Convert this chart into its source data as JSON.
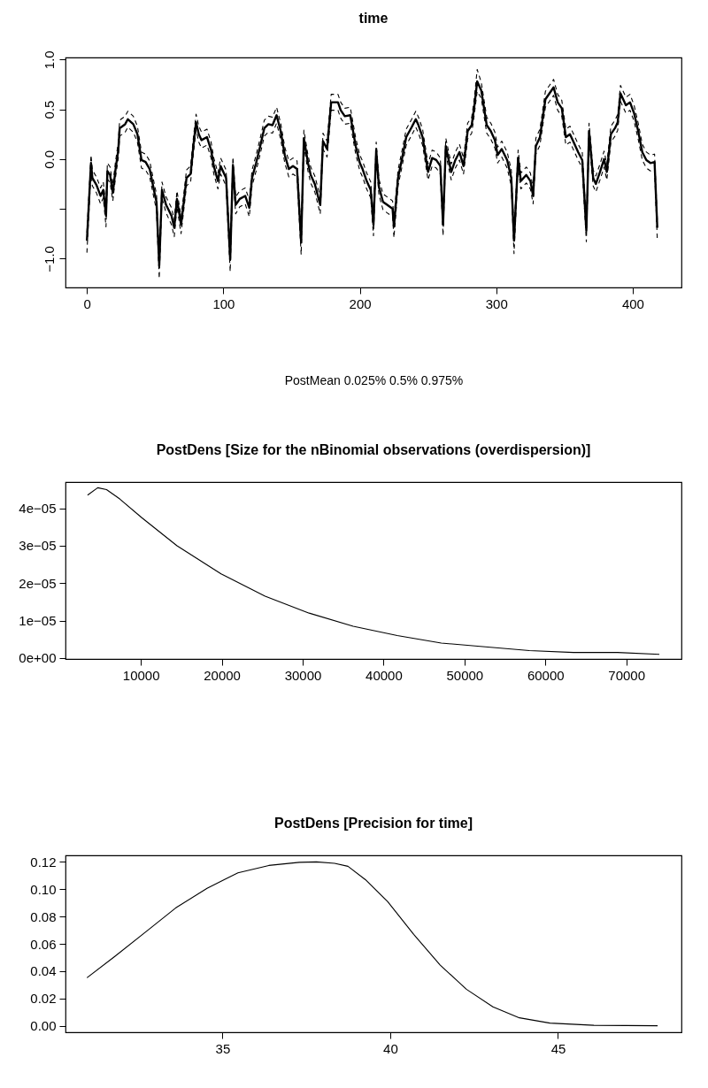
{
  "chart_data": [
    {
      "type": "line",
      "title": "time",
      "xlabel": "PostMean  0.025% 0.5% 0.975%",
      "grid": false,
      "xlim": [
        -15.7,
        435.7
      ],
      "ylim": [
        -1.29,
        1.02
      ],
      "xticks": [
        0,
        100,
        200,
        300,
        400
      ],
      "yticks": [
        {
          "value": -1.0,
          "label": "−1.0"
        },
        {
          "value": -0.5,
          "label": null
        },
        {
          "value": 0.0,
          "label": "0.0"
        },
        {
          "value": 0.5,
          "label": "0.5"
        },
        {
          "value": 1.0,
          "label": "1.0"
        }
      ],
      "x": [
        0,
        3,
        4,
        7,
        10,
        12,
        14,
        15,
        17,
        19,
        21,
        23,
        24,
        28,
        30,
        34,
        37,
        40,
        43,
        46,
        50,
        51,
        53,
        55,
        58,
        62,
        64,
        66,
        69,
        71,
        73,
        76,
        78,
        80,
        82,
        84,
        88,
        91,
        93,
        96,
        98,
        102,
        105,
        107,
        109,
        112,
        116,
        119,
        121,
        124,
        127,
        130,
        133,
        136,
        139,
        142,
        145,
        148,
        151,
        154,
        157,
        159,
        162,
        164,
        167,
        171,
        173,
        176,
        179,
        184,
        186,
        189,
        193,
        197,
        200,
        202,
        205,
        208,
        210,
        212,
        214,
        217,
        220,
        224,
        225,
        228,
        231,
        234,
        238,
        241,
        243,
        246,
        250,
        253,
        256,
        259,
        261,
        263,
        267,
        270,
        273,
        276,
        279,
        282,
        284,
        286,
        289,
        293,
        296,
        299,
        301,
        304,
        308,
        311,
        313,
        316,
        318,
        322,
        325,
        327,
        329,
        332,
        336,
        339,
        342,
        345,
        348,
        351,
        354,
        357,
        360,
        363,
        366,
        368,
        371,
        373,
        376,
        379,
        381,
        384,
        387,
        389,
        391,
        395,
        398,
        401,
        404,
        407,
        410,
        413,
        416,
        418
      ],
      "series": [
        {
          "color": "#000000",
          "line_style": "solid",
          "values": [
            -0.82,
            -0.04,
            -0.19,
            -0.26,
            -0.37,
            -0.31,
            -0.57,
            -0.12,
            -0.16,
            -0.34,
            -0.1,
            0.09,
            0.31,
            0.35,
            0.4,
            0.35,
            0.25,
            -0.01,
            -0.03,
            -0.1,
            -0.37,
            -0.43,
            -1.07,
            -0.31,
            -0.46,
            -0.57,
            -0.69,
            -0.4,
            -0.66,
            -0.43,
            -0.19,
            -0.15,
            0.13,
            0.37,
            0.25,
            0.19,
            0.22,
            0.09,
            -0.07,
            -0.22,
            -0.07,
            -0.19,
            -1.01,
            -0.06,
            -0.46,
            -0.4,
            -0.37,
            -0.49,
            -0.19,
            -0.04,
            0.13,
            0.31,
            0.35,
            0.34,
            0.44,
            0.28,
            0.04,
            -0.1,
            -0.07,
            -0.1,
            -0.84,
            0.21,
            -0.04,
            -0.16,
            -0.25,
            -0.46,
            0.18,
            0.1,
            0.57,
            0.57,
            0.49,
            0.43,
            0.44,
            0.13,
            -0.04,
            -0.1,
            -0.22,
            -0.31,
            -0.66,
            0.09,
            -0.28,
            -0.43,
            -0.46,
            -0.5,
            -0.68,
            -0.19,
            0.01,
            0.22,
            0.32,
            0.4,
            0.34,
            0.22,
            -0.13,
            0.01,
            -0.01,
            -0.07,
            -0.66,
            0.13,
            -0.13,
            -0.01,
            0.07,
            -0.07,
            0.28,
            0.34,
            0.54,
            0.78,
            0.69,
            0.34,
            0.28,
            0.19,
            0.04,
            0.1,
            -0.01,
            -0.19,
            -0.82,
            0.01,
            -0.22,
            -0.16,
            -0.22,
            -0.37,
            0.13,
            0.22,
            0.6,
            0.66,
            0.72,
            0.57,
            0.51,
            0.22,
            0.25,
            0.16,
            0.07,
            -0.01,
            -0.72,
            0.28,
            -0.19,
            -0.25,
            -0.13,
            0.0,
            -0.13,
            0.25,
            0.31,
            0.37,
            0.66,
            0.54,
            0.57,
            0.46,
            0.28,
            0.07,
            -0.01,
            -0.04,
            -0.03,
            -0.69
          ]
        },
        {
          "color": "#000000",
          "line_style": "dashed",
          "values": [
            -0.94,
            -0.12,
            -0.27,
            -0.34,
            -0.45,
            -0.39,
            -0.68,
            -0.2,
            -0.24,
            -0.42,
            -0.18,
            0.01,
            0.23,
            0.27,
            0.32,
            0.27,
            0.17,
            -0.09,
            -0.11,
            -0.18,
            -0.45,
            -0.52,
            -1.2,
            -0.39,
            -0.54,
            -0.66,
            -0.78,
            -0.48,
            -0.75,
            -0.51,
            -0.27,
            -0.23,
            0.05,
            0.29,
            0.17,
            0.11,
            0.14,
            0.01,
            -0.15,
            -0.3,
            -0.15,
            -0.27,
            -1.13,
            -0.14,
            -0.55,
            -0.48,
            -0.45,
            -0.58,
            -0.27,
            -0.12,
            0.05,
            0.23,
            0.27,
            0.26,
            0.36,
            0.2,
            -0.04,
            -0.18,
            -0.15,
            -0.18,
            -0.96,
            0.13,
            -0.12,
            -0.24,
            -0.33,
            -0.55,
            0.1,
            0.02,
            0.49,
            0.49,
            0.41,
            0.35,
            0.36,
            0.05,
            -0.12,
            -0.18,
            -0.3,
            -0.39,
            -0.77,
            0.01,
            -0.36,
            -0.51,
            -0.54,
            -0.58,
            -0.79,
            -0.27,
            -0.07,
            0.14,
            0.24,
            0.32,
            0.26,
            0.14,
            -0.21,
            -0.07,
            -0.09,
            -0.15,
            -0.77,
            0.05,
            -0.21,
            -0.09,
            -0.01,
            -0.15,
            0.2,
            0.26,
            0.46,
            0.68,
            0.61,
            0.26,
            0.2,
            0.11,
            -0.04,
            0.02,
            -0.09,
            -0.27,
            -0.95,
            -0.07,
            -0.3,
            -0.24,
            -0.3,
            -0.45,
            0.05,
            0.14,
            0.52,
            0.58,
            0.64,
            0.49,
            0.43,
            0.14,
            0.17,
            0.08,
            -0.01,
            -0.09,
            -0.83,
            0.2,
            -0.27,
            -0.33,
            -0.21,
            -0.08,
            -0.21,
            0.17,
            0.23,
            0.29,
            0.58,
            0.46,
            0.49,
            0.38,
            0.2,
            -0.01,
            -0.09,
            -0.12,
            -0.11,
            -0.81
          ]
        },
        {
          "color": "#000000",
          "line_style": "dashed",
          "values": [
            -0.74,
            0.04,
            -0.11,
            -0.18,
            -0.29,
            -0.23,
            -0.49,
            -0.04,
            -0.08,
            -0.26,
            -0.02,
            0.17,
            0.39,
            0.43,
            0.48,
            0.43,
            0.33,
            0.07,
            0.05,
            -0.02,
            -0.29,
            -0.35,
            -0.98,
            -0.23,
            -0.38,
            -0.49,
            -0.61,
            -0.32,
            -0.58,
            -0.35,
            -0.11,
            -0.07,
            0.21,
            0.45,
            0.33,
            0.27,
            0.3,
            0.17,
            0.01,
            -0.14,
            0.01,
            -0.11,
            -0.93,
            0.02,
            -0.38,
            -0.32,
            -0.29,
            -0.41,
            -0.11,
            0.04,
            0.21,
            0.39,
            0.43,
            0.42,
            0.52,
            0.36,
            0.12,
            -0.02,
            0.01,
            -0.02,
            -0.76,
            0.29,
            0.04,
            -0.08,
            -0.17,
            -0.38,
            0.26,
            0.18,
            0.65,
            0.65,
            0.57,
            0.51,
            0.52,
            0.21,
            0.04,
            -0.02,
            -0.14,
            -0.23,
            -0.58,
            0.17,
            -0.2,
            -0.35,
            -0.38,
            -0.42,
            -0.6,
            -0.11,
            0.09,
            0.3,
            0.4,
            0.48,
            0.42,
            0.3,
            -0.05,
            0.09,
            0.07,
            0.01,
            -0.58,
            0.21,
            -0.05,
            0.07,
            0.15,
            0.01,
            0.36,
            0.42,
            0.62,
            0.9,
            0.77,
            0.42,
            0.36,
            0.27,
            0.12,
            0.18,
            0.07,
            -0.11,
            -0.74,
            0.09,
            -0.14,
            -0.08,
            -0.14,
            -0.29,
            0.21,
            0.3,
            0.68,
            0.74,
            0.8,
            0.65,
            0.59,
            0.3,
            0.33,
            0.24,
            0.15,
            0.07,
            -0.64,
            0.36,
            -0.11,
            -0.17,
            -0.05,
            0.08,
            -0.05,
            0.33,
            0.39,
            0.45,
            0.74,
            0.62,
            0.65,
            0.54,
            0.36,
            0.15,
            0.07,
            0.04,
            0.05,
            -0.61
          ]
        }
      ]
    },
    {
      "type": "line",
      "title": "PostDens [Size for the nBinomial observations (overdispersion)]",
      "grid": false,
      "xlim": [
        680,
        76820
      ],
      "ylim": [
        -2.5e-07,
        4.7e-05
      ],
      "xticks": [
        10000,
        20000,
        30000,
        40000,
        50000,
        60000,
        70000
      ],
      "yticks": [
        {
          "value": 0,
          "label": "0e+00"
        },
        {
          "value": 1e-05,
          "label": "1e−05"
        },
        {
          "value": 2e-05,
          "label": "2e−05"
        },
        {
          "value": 3e-05,
          "label": "3e−05"
        },
        {
          "value": 4e-05,
          "label": "4e−05"
        }
      ],
      "x": [
        3411,
        4664,
        5753,
        7386,
        10109,
        14465,
        19910,
        25355,
        30800,
        36245,
        41690,
        47135,
        52580,
        58025,
        63470,
        68915,
        74090
      ],
      "series": [
        {
          "color": "#000000",
          "line_style": "solid",
          "values": [
            4.35e-05,
            4.55e-05,
            4.5e-05,
            4.25e-05,
            3.75e-05,
            3e-05,
            2.25e-05,
            1.65e-05,
            1.2e-05,
            8.5e-06,
            6e-06,
            4e-06,
            3e-06,
            2e-06,
            1.5e-06,
            1.5e-06,
            1e-06
          ]
        }
      ]
    },
    {
      "type": "line",
      "title": "PostDens [Precision for time]",
      "grid": false,
      "xlim": [
        30.32,
        48.68
      ],
      "ylim": [
        -0.0048,
        0.1248
      ],
      "xticks": [
        35,
        40,
        45
      ],
      "yticks": [
        {
          "value": 0,
          "label": "0.00"
        },
        {
          "value": 0.02,
          "label": "0.02"
        },
        {
          "value": 0.04,
          "label": "0.04"
        },
        {
          "value": 0.06,
          "label": "0.06"
        },
        {
          "value": 0.08,
          "label": "0.08"
        },
        {
          "value": 0.1,
          "label": "0.10"
        },
        {
          "value": 0.12,
          "label": "0.12"
        }
      ],
      "x": [
        30.96,
        31.79,
        32.7,
        33.6,
        34.54,
        35.46,
        36.38,
        37.29,
        37.8,
        38.34,
        38.74,
        39.26,
        39.92,
        40.7,
        41.49,
        42.27,
        43.06,
        43.85,
        44.76,
        46.07,
        47.97
      ],
      "series": [
        {
          "color": "#000000",
          "line_style": "solid",
          "values": [
            0.0351,
            0.0508,
            0.0685,
            0.0862,
            0.1007,
            0.112,
            0.1174,
            0.1197,
            0.12,
            0.119,
            0.1168,
            0.107,
            0.091,
            0.0669,
            0.0444,
            0.0267,
            0.0138,
            0.0058,
            0.0019,
            0.0003,
            0.0
          ]
        }
      ]
    }
  ]
}
